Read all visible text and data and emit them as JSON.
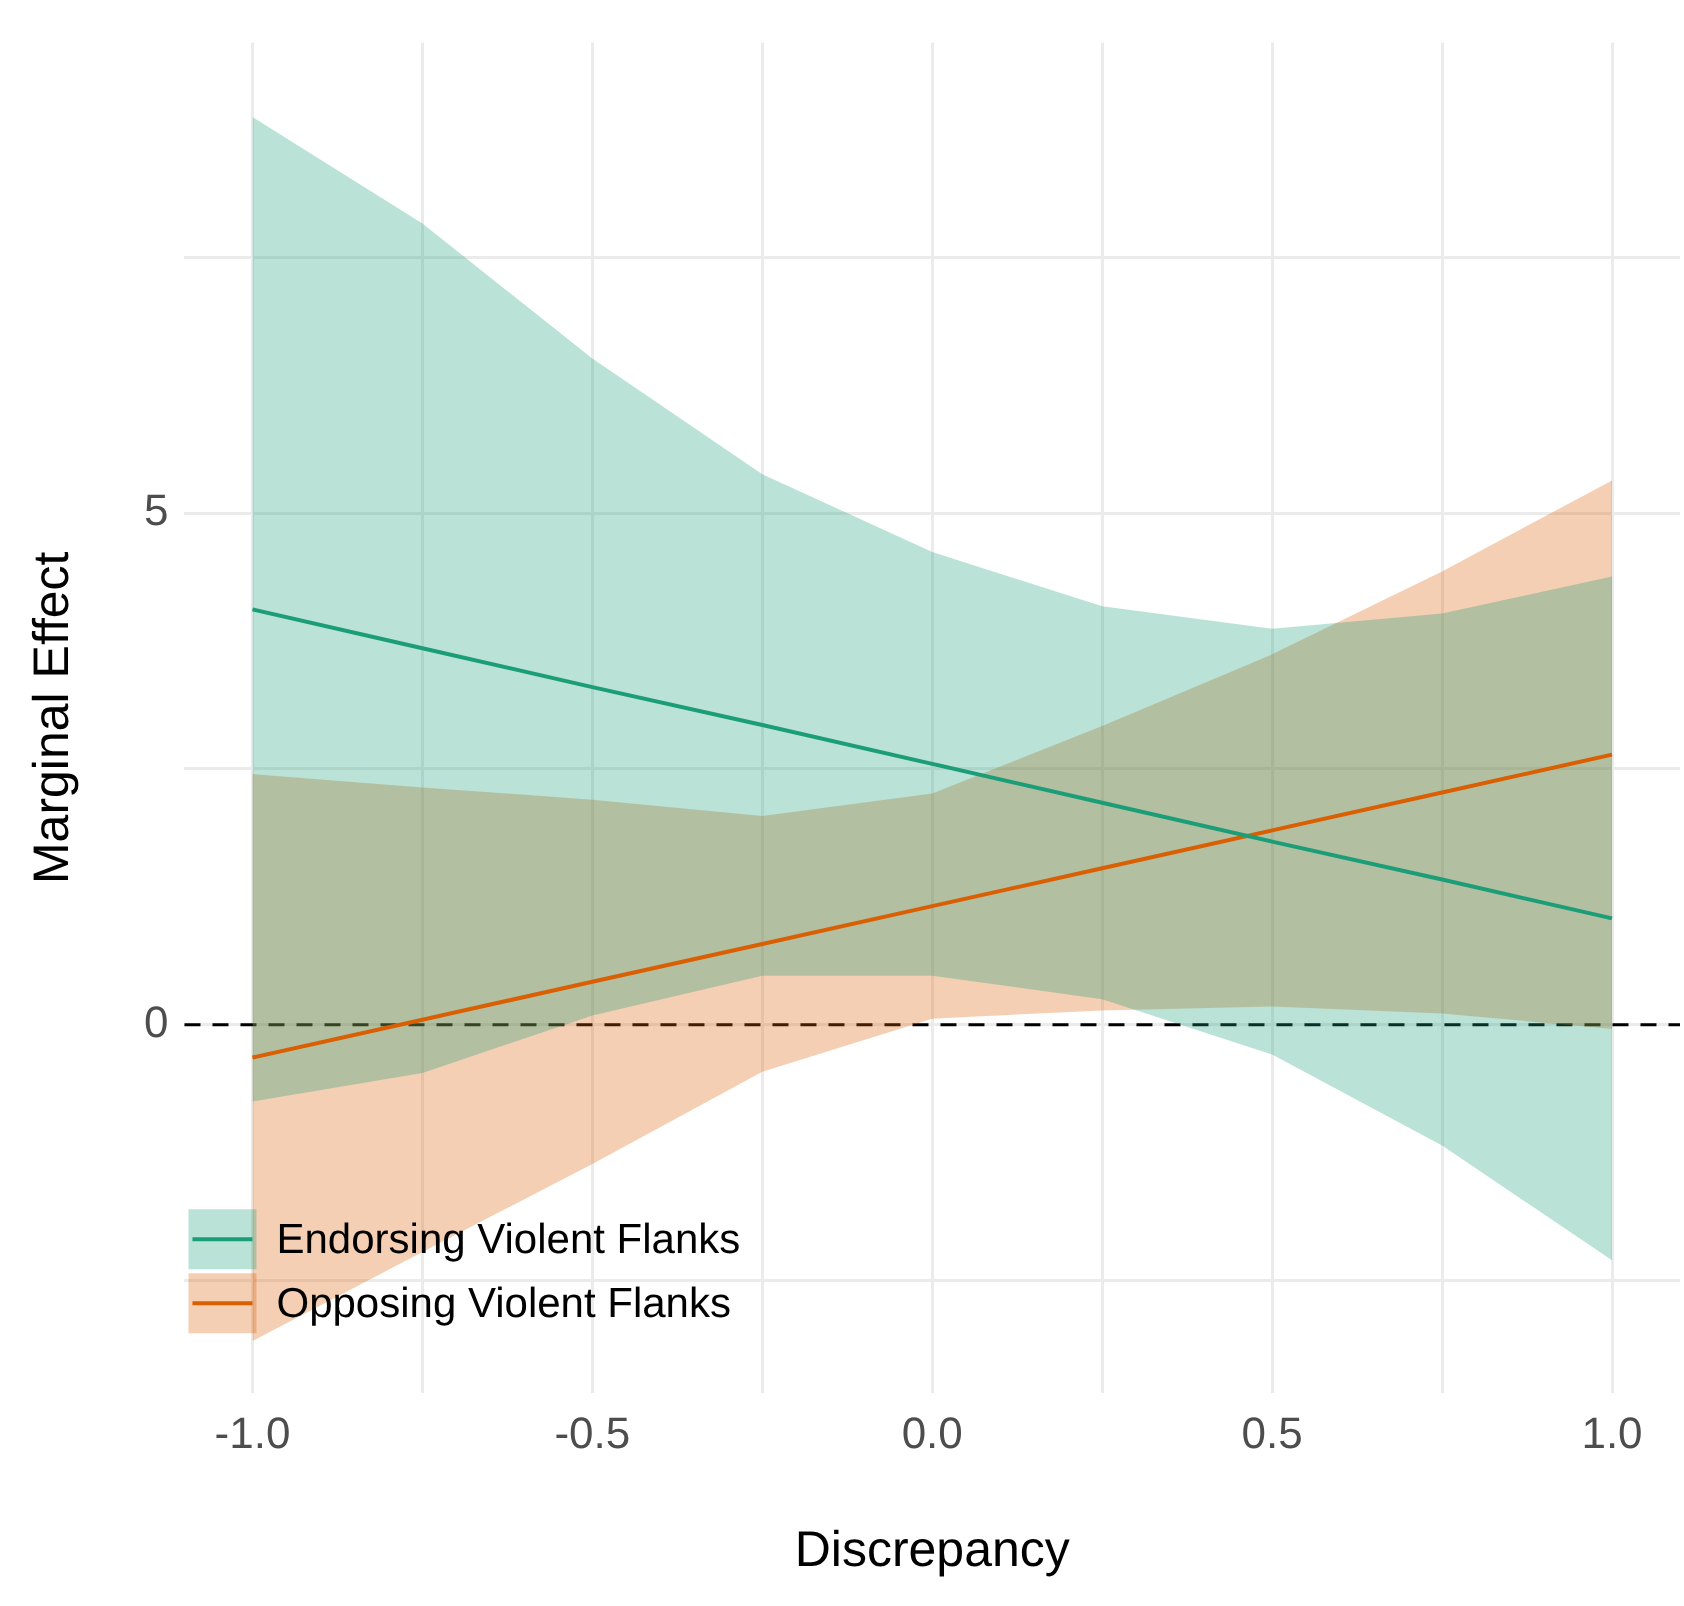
{
  "chart_data": {
    "type": "line",
    "xlabel": "Discrepancy",
    "ylabel": "Marginal Effect",
    "x": [
      -1,
      -0.75,
      -0.5,
      -0.25,
      0,
      0.25,
      0.5,
      0.75,
      1
    ],
    "xlim": [
      -1.1,
      1.1
    ],
    "ylim": [
      -3.6,
      9.6
    ],
    "xticks": [
      {
        "value": -1,
        "label": "-1.0"
      },
      {
        "value": -0.75,
        "label": null
      },
      {
        "value": -0.5,
        "label": "-0.5"
      },
      {
        "value": -0.25,
        "label": null
      },
      {
        "value": 0,
        "label": "0.0"
      },
      {
        "value": 0.25,
        "label": null
      },
      {
        "value": 0.5,
        "label": "0.5"
      },
      {
        "value": 0.75,
        "label": null
      },
      {
        "value": 1,
        "label": "1.0"
      }
    ],
    "yticks": [
      {
        "value": -2.5,
        "label": null
      },
      0,
      {
        "value": 2.5,
        "label": null
      },
      5,
      {
        "value": 7.5,
        "label": null
      }
    ],
    "grid": true,
    "legend": "bottom left",
    "marker": "none",
    "line_style": "solid",
    "ref_lines": [
      {
        "axis": "y",
        "value": 0,
        "color": "#000000",
        "line_style": "dashed"
      }
    ],
    "series": [
      {
        "name": "Endorsing Violent Flanks",
        "color": "#1b9e77",
        "values": [
          4.06,
          3.68,
          3.3,
          2.93,
          2.55,
          2.17,
          1.79,
          1.42,
          1.04
        ],
        "lower": [
          -0.75,
          -0.47,
          0.09,
          0.48,
          0.48,
          0.25,
          -0.29,
          -1.18,
          -2.3
        ],
        "upper": [
          8.87,
          7.83,
          6.51,
          5.38,
          4.62,
          4.09,
          3.87,
          4.02,
          4.38
        ]
      },
      {
        "name": "Opposing Violent Flanks",
        "color": "#d95f02",
        "values": [
          -0.32,
          0.05,
          0.42,
          0.79,
          1.16,
          1.53,
          1.9,
          2.27,
          2.64
        ],
        "lower": [
          -3.09,
          -2.22,
          -1.36,
          -0.46,
          0.06,
          0.14,
          0.18,
          0.11,
          -0.04
        ],
        "upper": [
          2.45,
          2.32,
          2.2,
          2.04,
          2.26,
          2.92,
          3.62,
          4.43,
          5.32
        ]
      }
    ]
  }
}
